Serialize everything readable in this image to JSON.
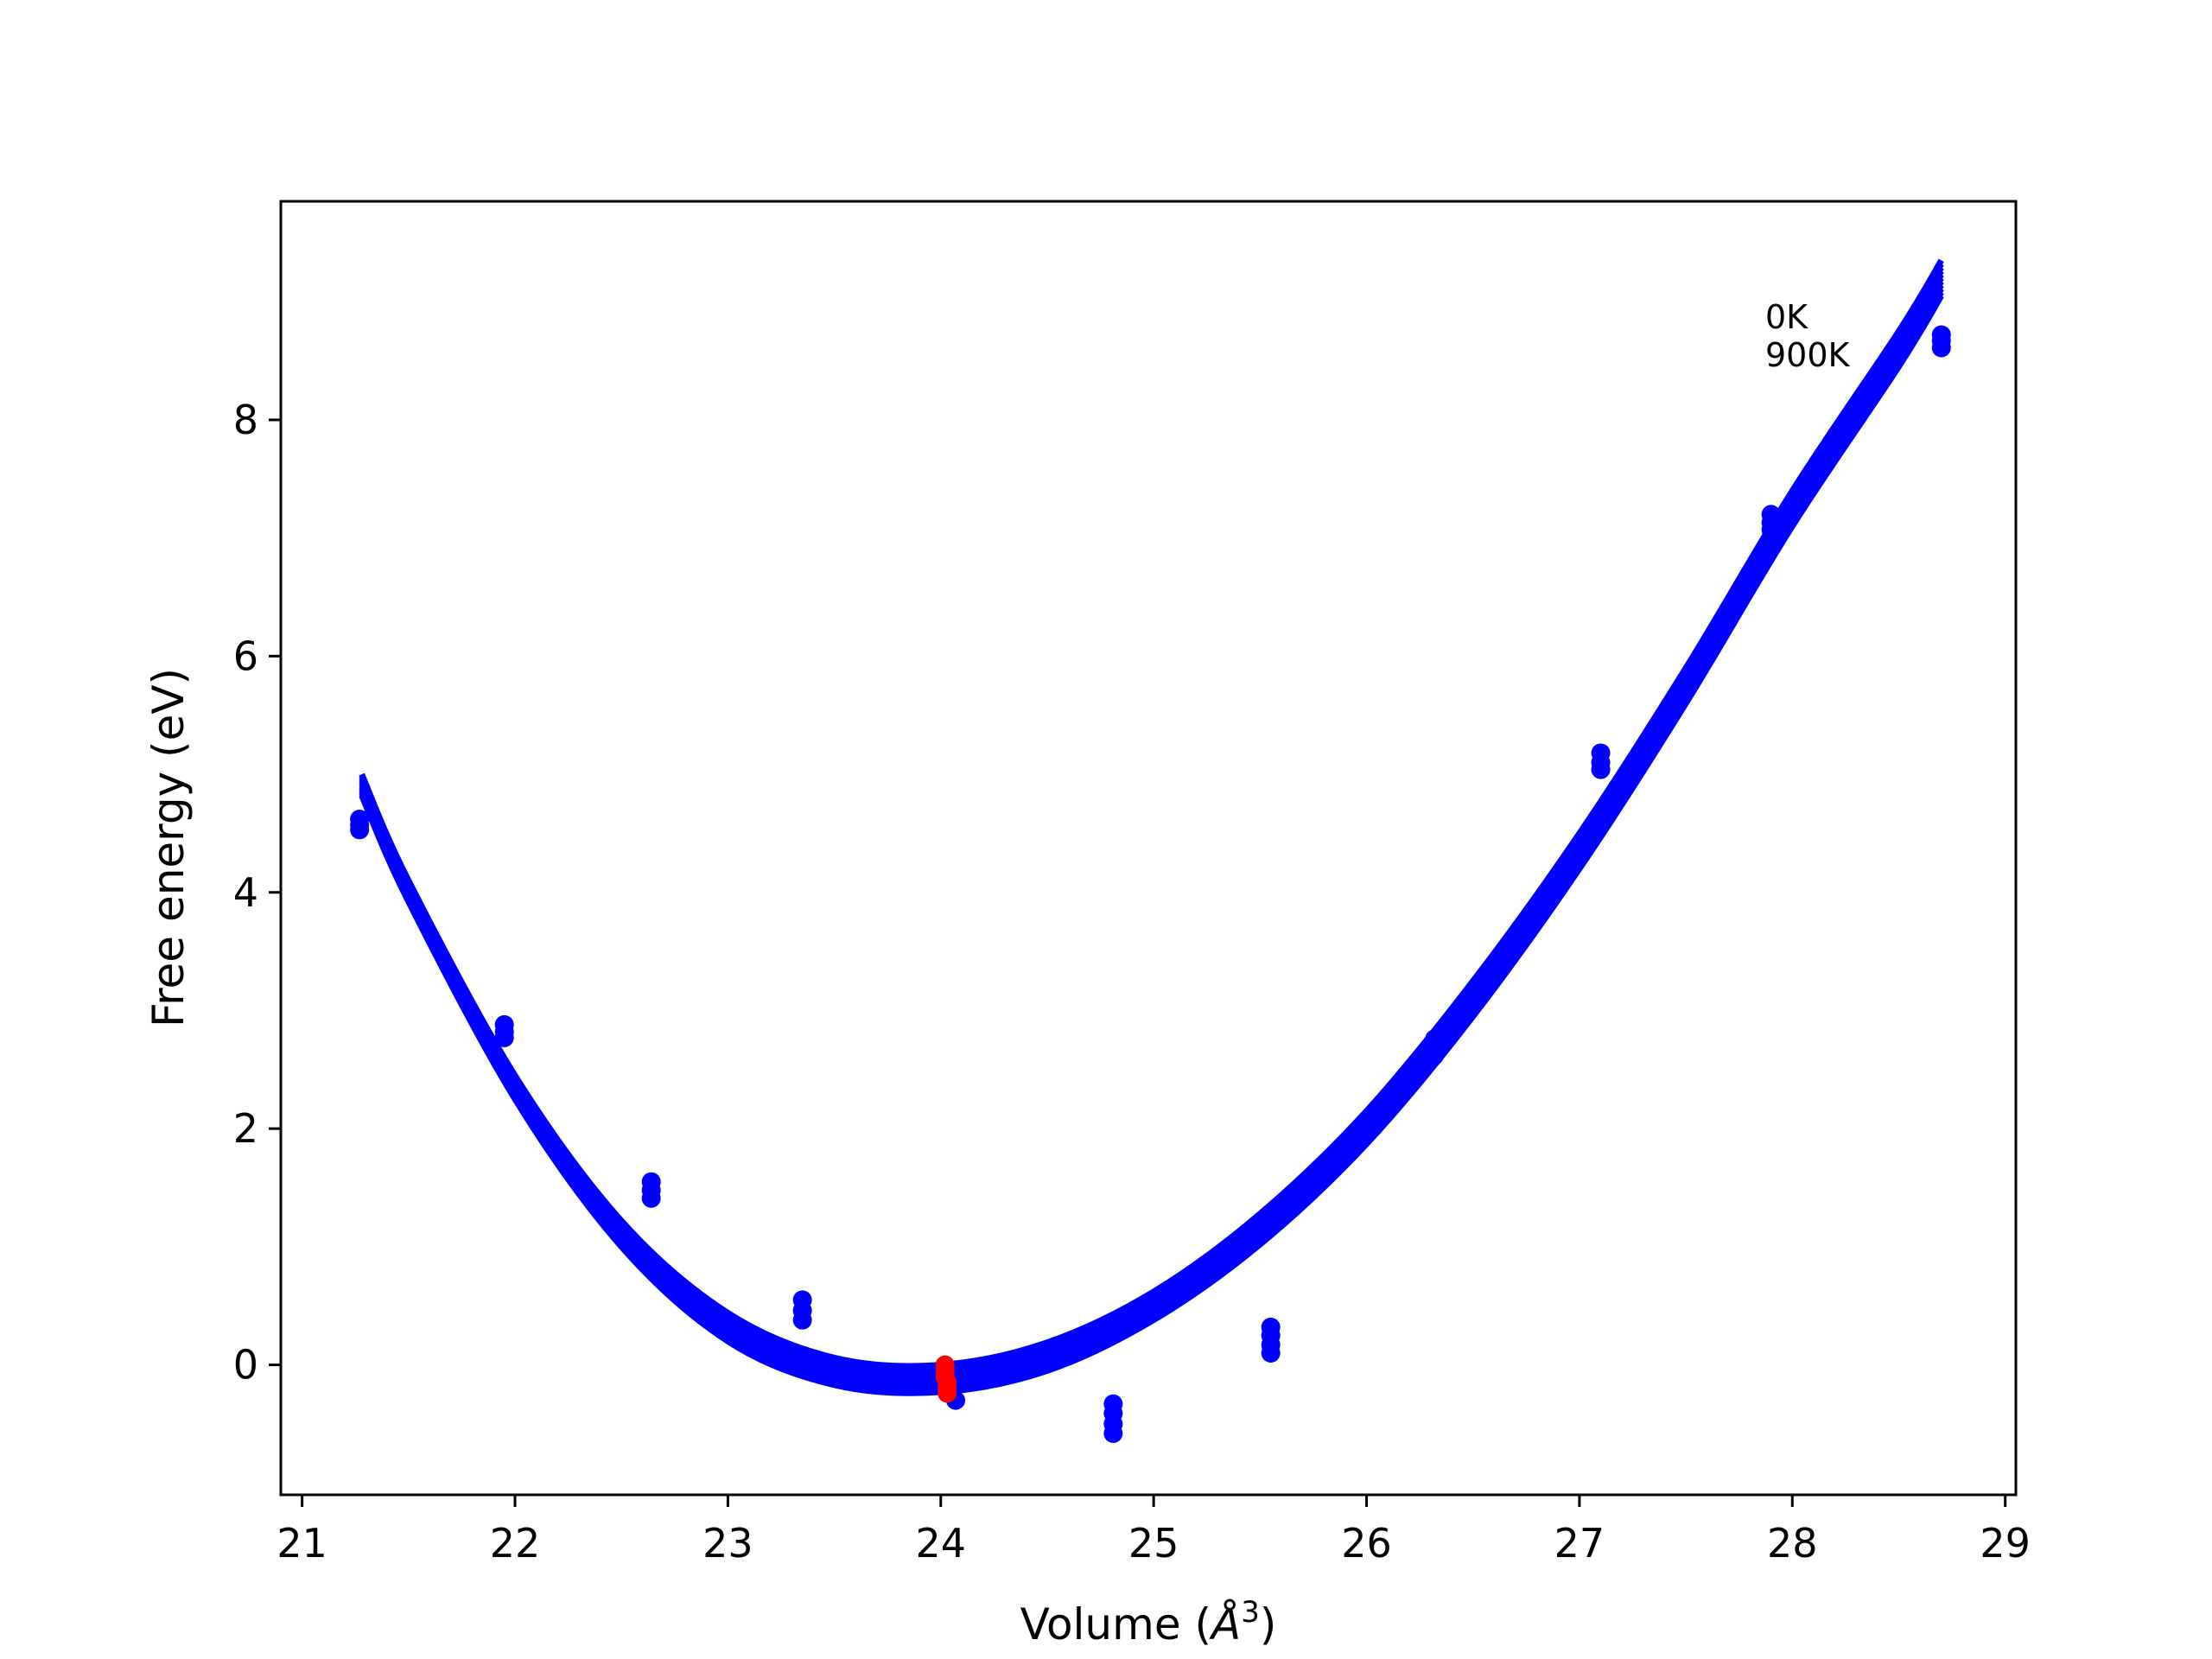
{
  "chart_data": {
    "type": "line",
    "xlabel": "Volume (Å³)",
    "xlabel_parts": {
      "main": "Volume (",
      "italic": "Å",
      "sup": "3",
      "end": ")"
    },
    "ylabel": "Free energy (eV)",
    "xlim": [
      20.9,
      29.05
    ],
    "ylim": [
      -1.1,
      9.85
    ],
    "xticks": [
      21,
      22,
      23,
      24,
      25,
      26,
      27,
      28,
      29
    ],
    "yticks": [
      0,
      2,
      4,
      6,
      8
    ],
    "grid": false,
    "legend": "none",
    "annotations": [
      "0K",
      "900K"
    ],
    "colors": {
      "curve": "#0000ff",
      "points": "#0000ff",
      "minimum": "#ff0000",
      "axes": "#000000"
    },
    "fit_curve_0K": {
      "x": [
        21.28,
        21.5,
        22.0,
        22.5,
        23.0,
        23.5,
        24.0,
        24.5,
        25.0,
        25.5,
        26.0,
        26.5,
        27.0,
        27.5,
        28.0,
        28.5,
        28.7
      ],
      "y": [
        5.0,
        4.1,
        2.45,
        1.22,
        0.44,
        0.06,
        0.0,
        0.19,
        0.62,
        1.28,
        2.15,
        3.25,
        4.5,
        5.9,
        7.4,
        8.75,
        9.35
      ]
    },
    "fit_curve_900K": {
      "x": [
        21.28,
        21.5,
        22.0,
        22.5,
        23.0,
        23.5,
        24.0,
        24.5,
        25.0,
        25.5,
        26.0,
        26.5,
        27.0,
        27.5,
        28.0,
        28.5,
        28.7
      ],
      "y": [
        4.82,
        3.92,
        2.25,
        1.0,
        0.2,
        -0.17,
        -0.23,
        -0.05,
        0.38,
        1.02,
        1.87,
        2.95,
        4.2,
        5.6,
        7.1,
        8.45,
        9.05
      ]
    },
    "series": [
      {
        "x": [
          21.27,
          21.27,
          21.27,
          21.95,
          21.95,
          21.95,
          22.64,
          22.64,
          22.64,
          23.35,
          23.35,
          23.35,
          24.07,
          24.81,
          24.81,
          24.81,
          24.81,
          25.55,
          25.55,
          25.55,
          25.55,
          26.32,
          26.32,
          26.32,
          27.1,
          27.1,
          27.1,
          27.9,
          27.9,
          27.9,
          28.7,
          28.7,
          28.7
        ],
        "y": [
          4.62,
          4.57,
          4.53,
          2.88,
          2.82,
          2.77,
          1.55,
          1.48,
          1.41,
          0.55,
          0.46,
          0.38,
          -0.3,
          -0.33,
          -0.41,
          -0.5,
          -0.58,
          0.32,
          0.25,
          0.17,
          0.1,
          2.76,
          2.69,
          2.62,
          5.18,
          5.1,
          5.04,
          7.2,
          7.13,
          7.07,
          8.72,
          8.67,
          8.61
        ]
      },
      {
        "x": [
          24.02,
          24.02,
          24.02,
          24.03,
          24.03,
          24.03
        ],
        "y": [
          0.0,
          -0.05,
          -0.1,
          -0.15,
          -0.2,
          -0.24
        ]
      }
    ]
  }
}
